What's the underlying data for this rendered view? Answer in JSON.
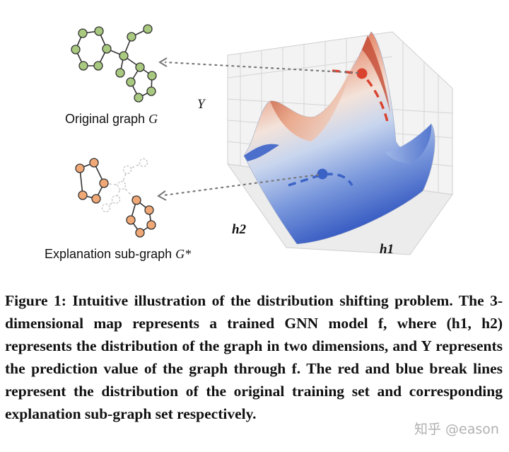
{
  "figure": {
    "original_graph_label": "Original graph",
    "original_graph_symbol": "G",
    "explanation_label": "Explanation sub-graph",
    "explanation_symbol": "G*",
    "y_axis_label": "Y",
    "x_axis_label": "h1",
    "z_axis_label": "h2",
    "colors": {
      "original_node": "#a8c97f",
      "explanation_node": "#f0a876",
      "red_line": "#d9432f",
      "blue_line": "#3b63c6",
      "dotted_arrow": "#777777"
    }
  },
  "caption": {
    "label": "Figure 1:",
    "text": "Intuitive illustration of the distribution shifting problem. The 3-dimensional map represents a trained GNN model f, where (h1, h2) represents the distribution of the graph in two dimensions, and Y represents the prediction value of the graph through f. The red and blue break lines represent the distribution of the original training set and corresponding explanation sub-graph set respectively."
  },
  "watermark": "知乎 @eason"
}
